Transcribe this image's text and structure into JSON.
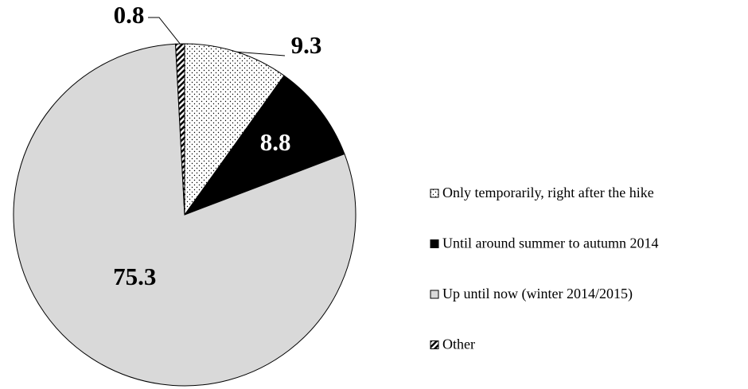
{
  "chart_data": {
    "type": "pie",
    "categories": [
      "Only temporarily, right after the hike",
      "Until around summer to autumn 2014",
      "Up until now (winter 2014/2015)",
      "Other"
    ],
    "values": [
      9.3,
      8.8,
      75.3,
      0.8
    ],
    "colors": [
      "#ffffff",
      "#000000",
      "#d9d9d9",
      "#ffffff"
    ],
    "legend": "right"
  }
}
